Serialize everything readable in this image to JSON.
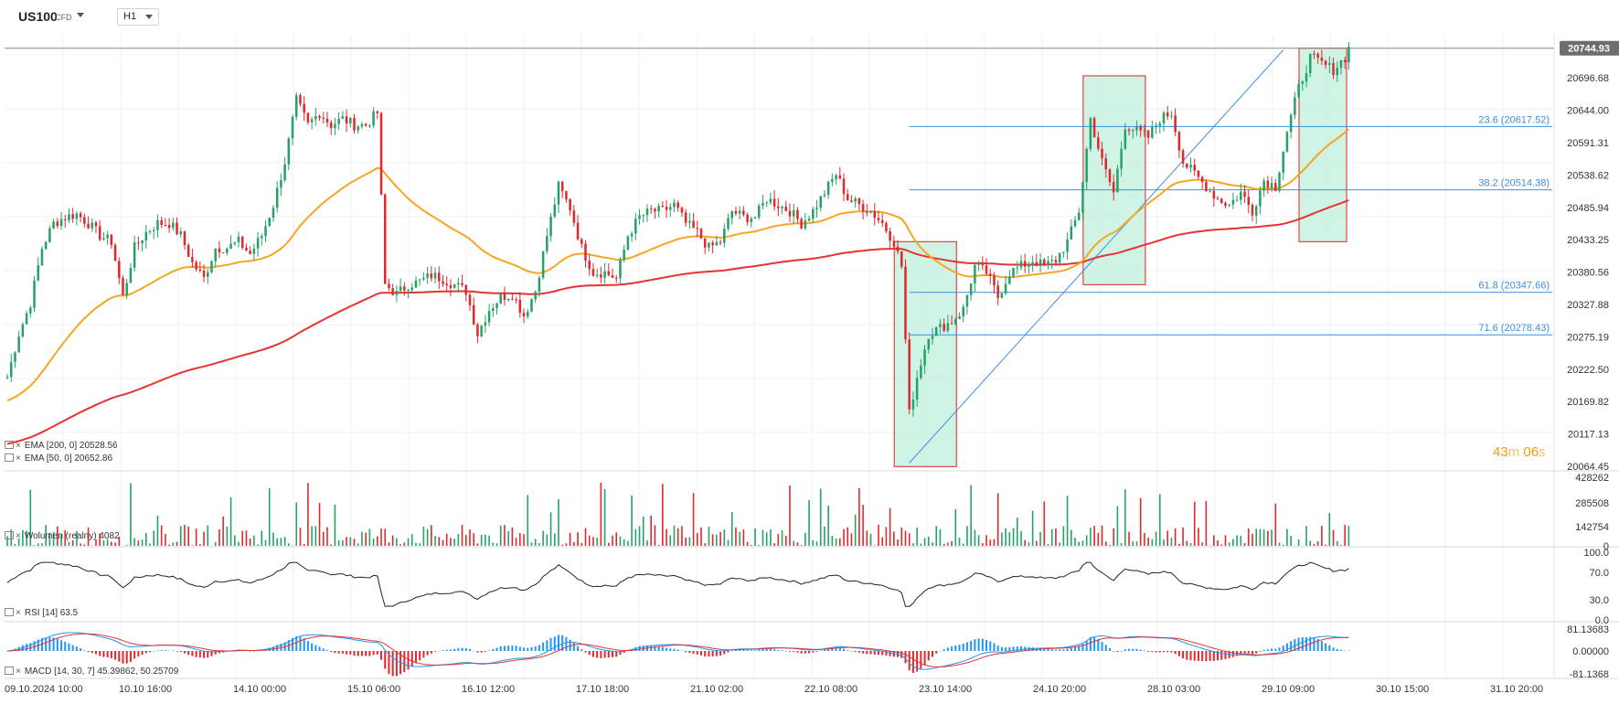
{
  "header": {
    "symbol": "US100",
    "symbol_type": "CFD",
    "timeframe": "H1"
  },
  "price_panel": {
    "current_price_label": "20744.93",
    "y_ticks": [
      "20696.68",
      "20644.00",
      "20591.31",
      "20538.62",
      "20485.94",
      "20433.25",
      "20380.56",
      "20327.88",
      "20275.19",
      "20222.50",
      "20169.82",
      "20117.13",
      "20064.45"
    ],
    "fib_labels": [
      "23.6 (20617.52)",
      "38.2 (20514.38)",
      "61.8 (20347.66)",
      "71.6 (20278.43)"
    ],
    "countdown_min": "43",
    "countdown_sec": "06",
    "countdown_min_unit": "m",
    "countdown_sec_unit": "s"
  },
  "legend": {
    "ema200": "EMA [200,  0]  20528.56",
    "ema50": "EMA [50,  0]  20652.86",
    "volume": "Wolumen  (realny)  4082",
    "rsi": "RSI [14]  63.5",
    "macd": "MACD [14,  30,  7]  45.39862,  50.25709"
  },
  "volume_panel": {
    "y_ticks": [
      "428262",
      "285508",
      "142754",
      "0"
    ]
  },
  "rsi_panel": {
    "y_ticks": [
      "100.0",
      "70.0",
      "30.0",
      "0.0"
    ]
  },
  "macd_panel": {
    "y_ticks": [
      "81.13683",
      "0.00000",
      "-81.1368"
    ]
  },
  "x_axis": {
    "labels": [
      "09.10.2024   10:00",
      "10.10  16:00",
      "14.10  00:00",
      "15.10  06:00",
      "16.10  12:00",
      "17.10  18:00",
      "21.10  02:00",
      "22.10  08:00",
      "23.10  14:00",
      "24.10  20:00",
      "28.10  03:00",
      "29.10  09:00",
      "30.10  15:00",
      "31.10  20:00"
    ]
  },
  "colors": {
    "bull": "#26a269",
    "bear": "#e0282e",
    "ema200": "#e63232",
    "ema50": "#f5a623",
    "fib": "#3d8fe0",
    "box_fill": "#bff0dd",
    "box_border": "#e04545",
    "macd_line": "#2196f3",
    "signal_line": "#e63232",
    "rsi_line": "#222222"
  },
  "chart_data": {
    "type": "candlestick",
    "instrument": "US100",
    "timeframe": "H1",
    "y_range": [
      20064.45,
      20749.0
    ],
    "last_price": 20744.93,
    "ema200_last": 20528.56,
    "ema50_last": 20652.86,
    "fib_levels": [
      {
        "ratio": 23.6,
        "price": 20617.52
      },
      {
        "ratio": 38.2,
        "price": 20514.38
      },
      {
        "ratio": 61.8,
        "price": 20347.66
      },
      {
        "ratio": 71.6,
        "price": 20278.43
      }
    ],
    "close_path": [
      [
        0,
        20210
      ],
      [
        3,
        20280
      ],
      [
        6,
        20330
      ],
      [
        9,
        20420
      ],
      [
        12,
        20460
      ],
      [
        15,
        20470
      ],
      [
        18,
        20475
      ],
      [
        21,
        20460
      ],
      [
        24,
        20440
      ],
      [
        27,
        20430
      ],
      [
        30,
        20340
      ],
      [
        33,
        20420
      ],
      [
        36,
        20445
      ],
      [
        39,
        20460
      ],
      [
        42,
        20460
      ],
      [
        45,
        20440
      ],
      [
        48,
        20395
      ],
      [
        51,
        20370
      ],
      [
        54,
        20420
      ],
      [
        57,
        20420
      ],
      [
        60,
        20430
      ],
      [
        63,
        20410
      ],
      [
        66,
        20440
      ],
      [
        69,
        20490
      ],
      [
        72,
        20560
      ],
      [
        75,
        20660
      ],
      [
        78,
        20620
      ],
      [
        81,
        20640
      ],
      [
        84,
        20620
      ],
      [
        87,
        20630
      ],
      [
        90,
        20620
      ],
      [
        93,
        20620
      ],
      [
        96,
        20640
      ],
      [
        98,
        20360
      ],
      [
        101,
        20345
      ],
      [
        104,
        20360
      ],
      [
        107,
        20365
      ],
      [
        110,
        20375
      ],
      [
        113,
        20370
      ],
      [
        116,
        20360
      ],
      [
        119,
        20350
      ],
      [
        122,
        20280
      ],
      [
        125,
        20320
      ],
      [
        128,
        20340
      ],
      [
        131,
        20345
      ],
      [
        134,
        20310
      ],
      [
        137,
        20350
      ],
      [
        140,
        20440
      ],
      [
        143,
        20520
      ],
      [
        146,
        20485
      ],
      [
        149,
        20420
      ],
      [
        152,
        20380
      ],
      [
        155,
        20380
      ],
      [
        158,
        20370
      ],
      [
        161,
        20440
      ],
      [
        164,
        20470
      ],
      [
        167,
        20480
      ],
      [
        170,
        20480
      ],
      [
        173,
        20490
      ],
      [
        176,
        20460
      ],
      [
        179,
        20445
      ],
      [
        182,
        20420
      ],
      [
        185,
        20430
      ],
      [
        188,
        20480
      ],
      [
        191,
        20470
      ],
      [
        194,
        20470
      ],
      [
        197,
        20500
      ],
      [
        200,
        20490
      ],
      [
        203,
        20480
      ],
      [
        206,
        20460
      ],
      [
        209,
        20480
      ],
      [
        212,
        20510
      ],
      [
        215,
        20540
      ],
      [
        218,
        20500
      ],
      [
        221,
        20490
      ],
      [
        224,
        20480
      ],
      [
        227,
        20460
      ],
      [
        230,
        20430
      ],
      [
        232,
        20390
      ],
      [
        234,
        20150
      ],
      [
        236,
        20210
      ],
      [
        239,
        20280
      ],
      [
        242,
        20290
      ],
      [
        245,
        20300
      ],
      [
        248,
        20320
      ],
      [
        251,
        20390
      ],
      [
        254,
        20380
      ],
      [
        257,
        20340
      ],
      [
        260,
        20380
      ],
      [
        263,
        20390
      ],
      [
        266,
        20400
      ],
      [
        269,
        20390
      ],
      [
        272,
        20400
      ],
      [
        275,
        20430
      ],
      [
        278,
        20480
      ],
      [
        281,
        20630
      ],
      [
        284,
        20560
      ],
      [
        287,
        20510
      ],
      [
        290,
        20620
      ],
      [
        293,
        20610
      ],
      [
        296,
        20600
      ],
      [
        299,
        20630
      ],
      [
        302,
        20640
      ],
      [
        305,
        20560
      ],
      [
        308,
        20540
      ],
      [
        311,
        20520
      ],
      [
        314,
        20500
      ],
      [
        317,
        20490
      ],
      [
        320,
        20510
      ],
      [
        323,
        20480
      ],
      [
        326,
        20530
      ],
      [
        329,
        20520
      ],
      [
        332,
        20610
      ],
      [
        335,
        20680
      ],
      [
        338,
        20730
      ],
      [
        341,
        20720
      ],
      [
        344,
        20710
      ],
      [
        347,
        20730
      ],
      [
        348,
        20745
      ]
    ]
  }
}
